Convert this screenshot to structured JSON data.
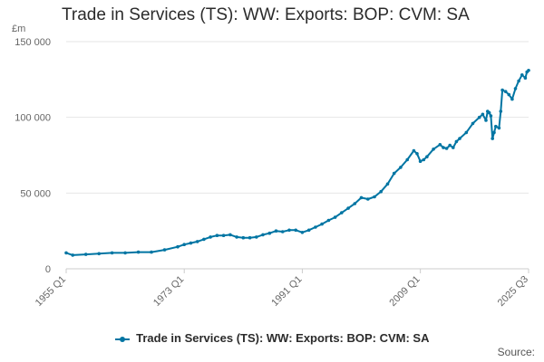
{
  "title": "Trade in Services (TS): WW: Exports: BOP: CVM: SA",
  "source_label": "Source:",
  "colors": {
    "series": "#0075a3",
    "grid": "#e6e6e6",
    "axis": "#cccccc"
  },
  "chart_data": {
    "type": "line",
    "title": "Trade in Services (TS): WW: Exports: BOP: CVM: SA",
    "ylabel": "£m",
    "xlabel": "",
    "ylim": [
      0,
      150000
    ],
    "yticks": [
      0,
      50000,
      100000,
      150000
    ],
    "ytick_labels": [
      "0",
      "50 000",
      "100 000",
      "150 000"
    ],
    "xticks": [
      1955.0,
      1973.0,
      1991.0,
      2009.0,
      2025.5
    ],
    "xtick_labels": [
      "1955 Q1",
      "1973 Q1",
      "1991 Q1",
      "2009 Q1",
      "2025 Q3"
    ],
    "xlim": [
      1955.0,
      2025.5
    ],
    "grid": "horizontal",
    "legend_position": "bottom",
    "series": [
      {
        "name": "Trade in Services (TS): WW: Exports: BOP: CVM: SA",
        "x": [
          1955.0,
          1956.0,
          1958.0,
          1960.0,
          1962.0,
          1964.0,
          1966.0,
          1968.0,
          1970.0,
          1972.0,
          1973.0,
          1974.0,
          1975.0,
          1976.0,
          1977.0,
          1978.0,
          1979.0,
          1980.0,
          1981.0,
          1982.0,
          1983.0,
          1984.0,
          1985.0,
          1986.0,
          1987.0,
          1988.0,
          1989.0,
          1990.0,
          1991.0,
          1992.0,
          1993.0,
          1994.0,
          1995.0,
          1996.0,
          1997.0,
          1998.0,
          1999.0,
          2000.0,
          2001.0,
          2002.0,
          2003.0,
          2004.0,
          2005.0,
          2006.0,
          2007.0,
          2008.0,
          2008.5,
          2009.0,
          2009.5,
          2010.0,
          2011.0,
          2012.0,
          2012.5,
          2013.0,
          2013.5,
          2014.0,
          2014.5,
          2015.0,
          2016.0,
          2017.0,
          2018.0,
          2018.5,
          2019.0,
          2019.25,
          2019.5,
          2019.75,
          2020.0,
          2020.25,
          2020.5,
          2021.0,
          2021.25,
          2021.5,
          2022.0,
          2022.5,
          2023.0,
          2023.5,
          2024.0,
          2024.5,
          2025.0,
          2025.25,
          2025.5
        ],
        "values": [
          10500,
          9000,
          9500,
          10000,
          10500,
          10500,
          11000,
          11000,
          12500,
          14500,
          16000,
          17000,
          18000,
          19500,
          21000,
          22000,
          22000,
          22500,
          21000,
          20500,
          20500,
          21000,
          22500,
          23500,
          25000,
          24500,
          25500,
          25500,
          24000,
          25500,
          27500,
          29500,
          32000,
          34000,
          37000,
          40000,
          43000,
          47000,
          46000,
          47500,
          51000,
          56000,
          63000,
          67000,
          72000,
          78000,
          76000,
          71000,
          72000,
          74000,
          79000,
          82000,
          80000,
          79500,
          81500,
          80000,
          84000,
          86000,
          90000,
          96000,
          100000,
          102000,
          98000,
          104000,
          103000,
          101000,
          86000,
          90000,
          94000,
          93000,
          104000,
          118000,
          117000,
          115000,
          112000,
          119000,
          124000,
          128000,
          126000,
          130000,
          131000
        ]
      }
    ]
  }
}
